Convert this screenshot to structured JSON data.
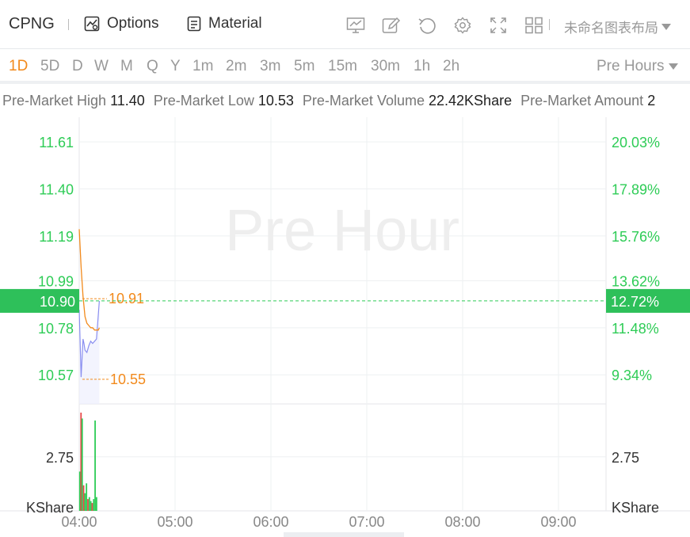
{
  "toolbar": {
    "symbol": "CPNG",
    "options_label": "Options",
    "material_label": "Material",
    "icons": [
      "indicator-icon",
      "draw-icon",
      "undo-icon",
      "settings-icon",
      "fullscreen-icon",
      "layout-grid-icon"
    ],
    "layout_name": "未命名图表布局"
  },
  "periods": {
    "items": [
      "1D",
      "5D",
      "D",
      "W",
      "M",
      "Q",
      "Y",
      "1m",
      "2m",
      "3m",
      "5m",
      "15m",
      "30m",
      "1h",
      "2h"
    ],
    "active": "1D",
    "session_label": "Pre Hours"
  },
  "stats": {
    "high_label": "Pre-Market High",
    "high": "11.40",
    "low_label": "Pre-Market Low",
    "low": "10.53",
    "volume_label": "Pre-Market Volume",
    "volume": "22.42KShare",
    "amount_label": "Pre-Market Amount",
    "amount": "2"
  },
  "colors": {
    "up": "#2ecc56",
    "down": "#e84a4a",
    "accent": "#f28a1c",
    "price_line": "#f28a1c",
    "avg_line": "#8a8ff0",
    "badge": "#2ec05a"
  },
  "chart_data": {
    "type": "line",
    "watermark": "Pre Hour",
    "price_axis": {
      "left_ticks": [
        "11.61",
        "11.40",
        "11.19",
        "10.99",
        "10.78",
        "10.57"
      ],
      "right_ticks": [
        "20.03%",
        "17.89%",
        "15.76%",
        "13.62%",
        "11.48%",
        "9.34%"
      ],
      "ylim": [
        10.44,
        11.72
      ]
    },
    "current": {
      "price": "10.90",
      "change_pct": "12.72%"
    },
    "markers": {
      "high_label": "10.91",
      "low_label": "10.55"
    },
    "x_ticks": [
      "04:00",
      "05:00",
      "06:00",
      "07:00",
      "08:00",
      "09:00"
    ],
    "x_range_hours": [
      4.0,
      9.5
    ],
    "series": [
      {
        "name": "price",
        "x": [
          4.0,
          4.02,
          4.04,
          4.06,
          4.08,
          4.1,
          4.12,
          4.14,
          4.16,
          4.18,
          4.2,
          4.21
        ],
        "values": [
          11.22,
          11.05,
          10.92,
          10.83,
          10.8,
          10.79,
          10.78,
          10.78,
          10.77,
          10.77,
          10.77,
          10.78
        ]
      },
      {
        "name": "average",
        "x": [
          4.0,
          4.02,
          4.04,
          4.05,
          4.06,
          4.08,
          4.1,
          4.12,
          4.14,
          4.16,
          4.18,
          4.21
        ],
        "values": [
          10.86,
          10.56,
          10.73,
          10.71,
          10.68,
          10.67,
          10.7,
          10.72,
          10.71,
          10.72,
          10.73,
          10.9
        ]
      }
    ],
    "volume": {
      "unit": "KShare",
      "ticks": [
        "2.75"
      ],
      "ylim": [
        0,
        5.2
      ],
      "bars": [
        {
          "x": 4.005,
          "v": 2.0,
          "dir": "up"
        },
        {
          "x": 4.018,
          "v": 5.0,
          "dir": "down"
        },
        {
          "x": 4.03,
          "v": 4.7,
          "dir": "up"
        },
        {
          "x": 4.045,
          "v": 1.3,
          "dir": "down"
        },
        {
          "x": 4.06,
          "v": 0.9,
          "dir": "up"
        },
        {
          "x": 4.075,
          "v": 1.4,
          "dir": "up"
        },
        {
          "x": 4.09,
          "v": 0.6,
          "dir": "down"
        },
        {
          "x": 4.105,
          "v": 0.7,
          "dir": "up"
        },
        {
          "x": 4.12,
          "v": 0.5,
          "dir": "up"
        },
        {
          "x": 4.135,
          "v": 0.4,
          "dir": "down"
        },
        {
          "x": 4.15,
          "v": 0.6,
          "dir": "up"
        },
        {
          "x": 4.165,
          "v": 4.6,
          "dir": "up"
        },
        {
          "x": 4.18,
          "v": 0.7,
          "dir": "up"
        }
      ]
    }
  }
}
